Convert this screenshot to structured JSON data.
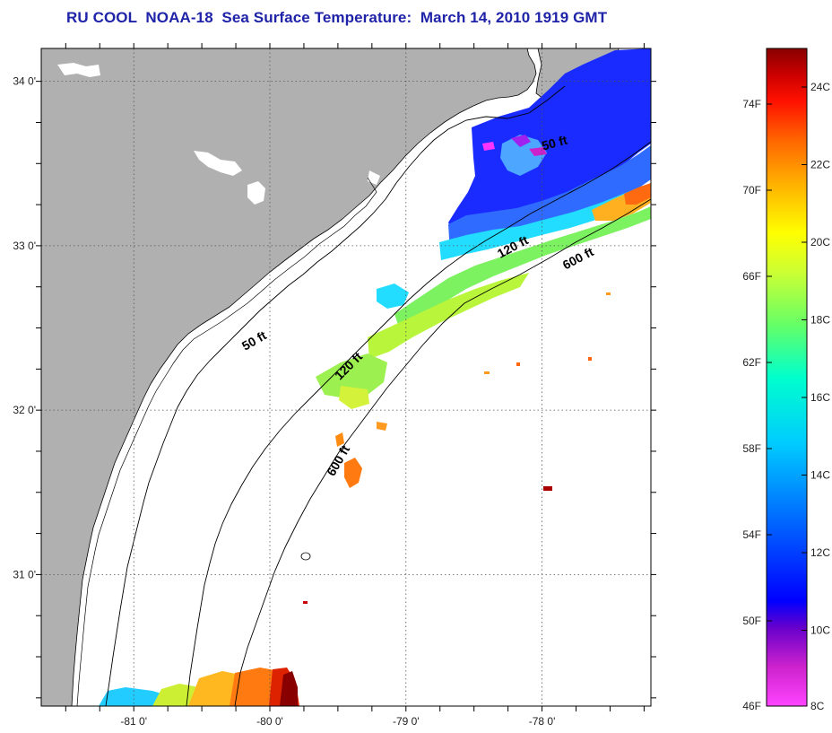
{
  "title": "RU COOL  NOAA-18  Sea Surface Temperature:  March 14, 2010 1919 GMT",
  "map": {
    "lon_min": -81.68,
    "lon_max": -77.2,
    "lat_min": 30.2,
    "lat_max": 34.2,
    "lon_ticks": [
      {
        "value": -81,
        "label": "-81 0'"
      },
      {
        "value": -80,
        "label": "-80 0'"
      },
      {
        "value": -79,
        "label": "-79 0'"
      },
      {
        "value": -78,
        "label": "-78 0'"
      }
    ],
    "lat_ticks": [
      {
        "value": 34,
        "label": "34 0'"
      },
      {
        "value": 33,
        "label": "33 0'"
      },
      {
        "value": 32,
        "label": "32 0'"
      },
      {
        "value": 31,
        "label": "31 0'"
      }
    ],
    "gridlines": true,
    "land_color": "#b0b0b0",
    "ocean_color": "#ffffff",
    "depth_contours": [
      {
        "label": "50 ft",
        "lon": -80.1,
        "lat": 32.4,
        "angle": -30
      },
      {
        "label": "50 ft",
        "lon": -77.9,
        "lat": 33.6,
        "angle": -15
      },
      {
        "label": "120 ft",
        "lon": -79.4,
        "lat": 32.25,
        "angle": -45
      },
      {
        "label": "120 ft",
        "lon": -78.2,
        "lat": 32.97,
        "angle": -28
      },
      {
        "label": "600 ft",
        "lon": -79.47,
        "lat": 31.68,
        "angle": -60
      },
      {
        "label": "600 ft",
        "lon": -77.72,
        "lat": 32.9,
        "angle": -28
      }
    ]
  },
  "colorbar": {
    "fahrenheit_labels": [
      "74F",
      "70F",
      "66F",
      "62F",
      "58F",
      "54F",
      "50F",
      "46F"
    ],
    "celsius_labels": [
      "24C",
      "22C",
      "20C",
      "18C",
      "16C",
      "14C",
      "12C",
      "10C",
      "8C"
    ],
    "colors": [
      "#ff44ff",
      "#cc22cc",
      "#6600cc",
      "#0000ff",
      "#0066ff",
      "#00ccff",
      "#00ffcc",
      "#66ff66",
      "#ccff33",
      "#ffff00",
      "#ffaa00",
      "#ff6600",
      "#ff1100",
      "#cc0000",
      "#880000"
    ]
  }
}
